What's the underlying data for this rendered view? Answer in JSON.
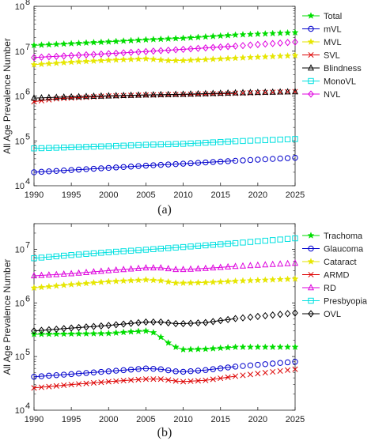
{
  "chart_data": [
    {
      "type": "line",
      "caption": "(a)",
      "ylabel": "All Age Prevalence Number",
      "xlim": [
        1990,
        2025
      ],
      "ylim": [
        10000,
        100000000
      ],
      "yscale": "log",
      "x_ticks": [
        "1990",
        "1995",
        "2000",
        "2005",
        "2010",
        "2015",
        "2020",
        "2025"
      ],
      "y_ticks": [
        {
          "base": "10",
          "exp": "4"
        },
        {
          "base": "10",
          "exp": "5"
        },
        {
          "base": "10",
          "exp": "6"
        },
        {
          "base": "10",
          "exp": "7"
        },
        {
          "base": "10",
          "exp": "8"
        }
      ],
      "legend_position": "right",
      "series": [
        {
          "name": "Total",
          "color": "#00dd00",
          "marker": "star",
          "observed": [
            [
              1990,
              13500000
            ],
            [
              2000,
              16200000
            ],
            [
              2005,
              18000000
            ],
            [
              2010,
              19500000
            ],
            [
              2017,
              23000000
            ]
          ],
          "projected": [
            [
              2017,
              23000000
            ],
            [
              2025,
              26000000
            ]
          ]
        },
        {
          "name": "mVL",
          "color": "#0000cc",
          "marker": "circle",
          "observed": [
            [
              1990,
              20000
            ],
            [
              2000,
              25000
            ],
            [
              2005,
              28000
            ],
            [
              2010,
              31000
            ],
            [
              2017,
              36000
            ]
          ],
          "projected": [
            [
              2017,
              36000
            ],
            [
              2025,
              42000
            ]
          ]
        },
        {
          "name": "MVL",
          "color": "#e6e600",
          "marker": "star",
          "observed": [
            [
              1990,
              5000000
            ],
            [
              1995,
              5700000
            ],
            [
              2000,
              6300000
            ],
            [
              2005,
              6800000
            ],
            [
              2008,
              6200000
            ],
            [
              2010,
              6200000
            ],
            [
              2017,
              7000000
            ]
          ],
          "projected": [
            [
              2017,
              7000000
            ],
            [
              2025,
              8000000
            ]
          ]
        },
        {
          "name": "SVL",
          "color": "#dd0000",
          "marker": "x",
          "observed": [
            [
              1990,
              750000
            ],
            [
              1993,
              870000
            ],
            [
              2000,
              1000000
            ],
            [
              2005,
              1050000
            ],
            [
              2010,
              1080000
            ],
            [
              2017,
              1150000
            ]
          ],
          "projected": [
            [
              2017,
              1150000
            ],
            [
              2025,
              1250000
            ]
          ]
        },
        {
          "name": "Blindness",
          "color": "#000000",
          "marker": "triangle",
          "observed": [
            [
              1990,
              900000
            ],
            [
              1995,
              960000
            ],
            [
              2000,
              1010000
            ],
            [
              2005,
              1060000
            ],
            [
              2010,
              1100000
            ],
            [
              2017,
              1180000
            ]
          ],
          "projected": [
            [
              2017,
              1180000
            ],
            [
              2025,
              1250000
            ]
          ]
        },
        {
          "name": "MonoVL",
          "color": "#00e0e0",
          "marker": "square",
          "observed": [
            [
              1990,
              68000
            ],
            [
              2000,
              76000
            ],
            [
              2005,
              82000
            ],
            [
              2010,
              86000
            ],
            [
              2017,
              98000
            ]
          ],
          "projected": [
            [
              2017,
              98000
            ],
            [
              2025,
              110000
            ]
          ]
        },
        {
          "name": "NVL",
          "color": "#e000e0",
          "marker": "diamond",
          "observed": [
            [
              1990,
              7200000
            ],
            [
              2000,
              8800000
            ],
            [
              2005,
              9800000
            ],
            [
              2010,
              11000000
            ],
            [
              2017,
              13000000
            ]
          ],
          "projected": [
            [
              2017,
              13000000
            ],
            [
              2025,
              16000000
            ]
          ]
        }
      ]
    },
    {
      "type": "line",
      "caption": "(b)",
      "ylabel": "All Age Prevalence Number",
      "xlim": [
        1990,
        2025
      ],
      "ylim": [
        10000,
        30000000
      ],
      "yscale": "log",
      "x_ticks": [
        "1990",
        "1995",
        "2000",
        "2005",
        "2010",
        "2015",
        "2020",
        "2025"
      ],
      "y_ticks": [
        {
          "base": "10",
          "exp": "4"
        },
        {
          "base": "10",
          "exp": "5"
        },
        {
          "base": "10",
          "exp": "6"
        },
        {
          "base": "10",
          "exp": "7"
        }
      ],
      "legend_position": "right",
      "series": [
        {
          "name": "Trachoma",
          "color": "#00dd00",
          "marker": "star",
          "observed": [
            [
              1990,
              260000
            ],
            [
              2000,
              270000
            ],
            [
              2003,
              290000
            ],
            [
              2005,
              300000
            ],
            [
              2006,
              280000
            ],
            [
              2007,
              230000
            ],
            [
              2008,
              180000
            ],
            [
              2009,
              150000
            ],
            [
              2010,
              135000
            ],
            [
              2013,
              138000
            ],
            [
              2017,
              150000
            ]
          ],
          "projected": [
            [
              2017,
              150000
            ],
            [
              2025,
              150000
            ]
          ]
        },
        {
          "name": "Glaucoma",
          "color": "#0000cc",
          "marker": "circle",
          "observed": [
            [
              1990,
              42000
            ],
            [
              1995,
              47000
            ],
            [
              2000,
              53000
            ],
            [
              2005,
              60000
            ],
            [
              2007,
              58000
            ],
            [
              2009,
              53000
            ],
            [
              2010,
              52000
            ],
            [
              2013,
              56000
            ],
            [
              2017,
              65000
            ]
          ],
          "projected": [
            [
              2017,
              65000
            ],
            [
              2025,
              80000
            ]
          ]
        },
        {
          "name": "Cataract",
          "color": "#e6e600",
          "marker": "star",
          "observed": [
            [
              1990,
              1900000
            ],
            [
              1995,
              2200000
            ],
            [
              2000,
              2500000
            ],
            [
              2005,
              2700000
            ],
            [
              2007,
              2600000
            ],
            [
              2009,
              2350000
            ],
            [
              2010,
              2350000
            ],
            [
              2013,
              2400000
            ],
            [
              2017,
              2550000
            ]
          ],
          "projected": [
            [
              2017,
              2550000
            ],
            [
              2025,
              2800000
            ]
          ]
        },
        {
          "name": "ARMD",
          "color": "#dd0000",
          "marker": "x",
          "observed": [
            [
              1990,
              26000
            ],
            [
              1995,
              30000
            ],
            [
              2000,
              34000
            ],
            [
              2005,
              38000
            ],
            [
              2007,
              38000
            ],
            [
              2009,
              35000
            ],
            [
              2010,
              34000
            ],
            [
              2013,
              36000
            ],
            [
              2017,
              43000
            ]
          ],
          "projected": [
            [
              2017,
              43000
            ],
            [
              2025,
              58000
            ]
          ]
        },
        {
          "name": "RD",
          "color": "#dd00dd",
          "marker": "triangle",
          "observed": [
            [
              1990,
              3200000
            ],
            [
              1995,
              3500000
            ],
            [
              2000,
              4000000
            ],
            [
              2005,
              4500000
            ],
            [
              2007,
              4500000
            ],
            [
              2009,
              4200000
            ],
            [
              2010,
              4200000
            ],
            [
              2013,
              4400000
            ],
            [
              2017,
              4800000
            ]
          ],
          "projected": [
            [
              2017,
              4800000
            ],
            [
              2025,
              5500000
            ]
          ]
        },
        {
          "name": "Presbyopia",
          "color": "#00e0e0",
          "marker": "square",
          "observed": [
            [
              1990,
              6800000
            ],
            [
              1995,
              7800000
            ],
            [
              2000,
              8800000
            ],
            [
              2005,
              9800000
            ],
            [
              2010,
              11000000
            ],
            [
              2017,
              13000000
            ]
          ],
          "projected": [
            [
              2017,
              13000000
            ],
            [
              2025,
              16000000
            ]
          ]
        },
        {
          "name": "OVL",
          "color": "#000000",
          "marker": "diamond",
          "observed": [
            [
              1990,
              300000
            ],
            [
              1995,
              340000
            ],
            [
              2000,
              380000
            ],
            [
              2005,
              440000
            ],
            [
              2007,
              440000
            ],
            [
              2009,
              410000
            ],
            [
              2010,
              410000
            ],
            [
              2013,
              430000
            ],
            [
              2017,
              510000
            ]
          ],
          "projected": [
            [
              2017,
              510000
            ],
            [
              2025,
              650000
            ]
          ]
        }
      ]
    }
  ]
}
